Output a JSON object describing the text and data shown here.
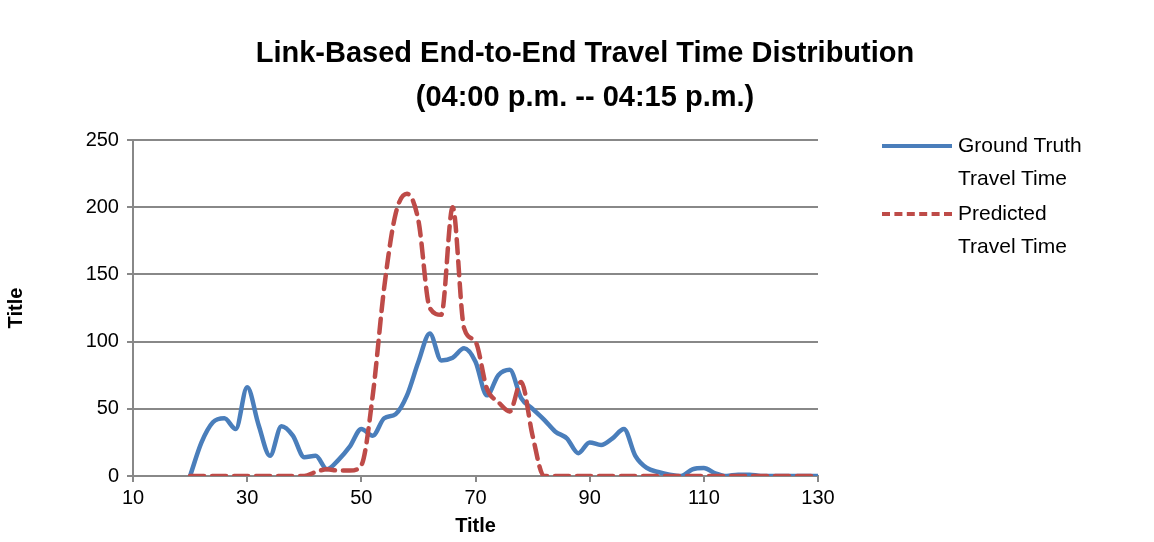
{
  "chart_data": {
    "type": "line",
    "title": "Link-Based End-to-End Travel Time Distribution (04:00 p.m. -- 04:15 p.m.)",
    "xlabel": "Title",
    "ylabel": "Title",
    "x": [
      20,
      22,
      24,
      26,
      28,
      30,
      32,
      34,
      36,
      38,
      40,
      42,
      44,
      46,
      48,
      50,
      52,
      54,
      56,
      58,
      60,
      62,
      64,
      66,
      68,
      70,
      72,
      74,
      76,
      78,
      80,
      82,
      84,
      86,
      88,
      90,
      92,
      94,
      96,
      98,
      100,
      102,
      104,
      106,
      108,
      110,
      112,
      114,
      116,
      118,
      120,
      122,
      124,
      126,
      128,
      130
    ],
    "series": [
      {
        "name": "Ground Truth Travel Time",
        "color": "#4a7ebb",
        "line_style": "solid",
        "values": [
          0,
          25,
          40,
          43,
          35,
          66,
          38,
          15,
          37,
          30,
          14,
          15,
          5,
          12,
          22,
          35,
          30,
          43,
          46,
          60,
          85,
          106,
          86,
          88,
          95,
          85,
          60,
          75,
          79,
          58,
          50,
          42,
          33,
          28,
          17,
          25,
          23,
          28,
          35,
          15,
          6,
          3,
          1,
          0,
          5,
          6,
          2,
          0,
          1,
          1,
          0,
          0,
          0,
          0,
          0,
          0
        ]
      },
      {
        "name": "Predicted Travel Time",
        "color": "#be4b48",
        "line_style": "dashed",
        "values": [
          0,
          0,
          0,
          0,
          0,
          0,
          0,
          0,
          0,
          0,
          0,
          3,
          5,
          4,
          4,
          8,
          60,
          140,
          195,
          210,
          190,
          125,
          120,
          200,
          110,
          100,
          65,
          55,
          48,
          70,
          30,
          0,
          0,
          0,
          0,
          0,
          0,
          0,
          0,
          0,
          0,
          0,
          0,
          0,
          0,
          0,
          0,
          0,
          0,
          0,
          0,
          0,
          0,
          0,
          0,
          0
        ]
      }
    ],
    "xlim": [
      10,
      130
    ],
    "xticks": [
      10,
      30,
      50,
      70,
      90,
      110,
      130
    ],
    "ylim": [
      0,
      250
    ],
    "yticks": [
      0,
      50,
      100,
      150,
      200,
      250
    ],
    "grid": "y",
    "legend": "right",
    "marker": "none"
  }
}
